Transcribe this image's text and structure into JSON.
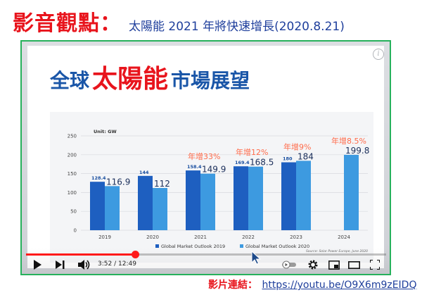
{
  "header": {
    "title": "影音觀點：",
    "subtitle": "太陽能 2021 年將快速增長(2020.8.21)"
  },
  "slide": {
    "title_prefix": "全球",
    "title_highlight": "太陽能",
    "title_suffix": "市場展望"
  },
  "chart_data": {
    "type": "bar",
    "unit_label": "Unit: GW",
    "categories": [
      "2019",
      "2020",
      "2021",
      "2022",
      "2023",
      "2024"
    ],
    "series": [
      {
        "name": "Global Market Outlook 2019",
        "color": "#1e5fc0",
        "values": [
          128.4,
          144,
          158.4,
          169.4,
          180,
          null
        ]
      },
      {
        "name": "Global Market Outlook 2020",
        "color": "#3d9ae0",
        "values": [
          116.9,
          112,
          149.9,
          168.5,
          184,
          199.8
        ]
      }
    ],
    "yticks": [
      0,
      50,
      100,
      150,
      200,
      250
    ],
    "ylim": [
      0,
      250
    ],
    "source": "Source: Solar Power Europe, June 2020",
    "annotations": [
      {
        "category": "2021",
        "text": "年增33%"
      },
      {
        "category": "2022",
        "text": "年增12%"
      },
      {
        "category": "2023",
        "text": "年增9%"
      },
      {
        "category": "2024",
        "text": "年增8.5%"
      }
    ]
  },
  "player": {
    "current_time": "3:52",
    "duration": "12:49",
    "progress": 0.302,
    "icons": {
      "play": "play-icon",
      "next": "next-icon",
      "volume": "volume-icon",
      "autoplay": "autoplay-toggle-icon",
      "settings": "gear-icon",
      "miniplayer": "miniplayer-icon",
      "theater": "theater-icon",
      "fullscreen": "fullscreen-icon",
      "info": "info-icon"
    }
  },
  "footer": {
    "label": "影片連結：",
    "link": "https://youtu.be/O9X6m9zEIDQ"
  }
}
